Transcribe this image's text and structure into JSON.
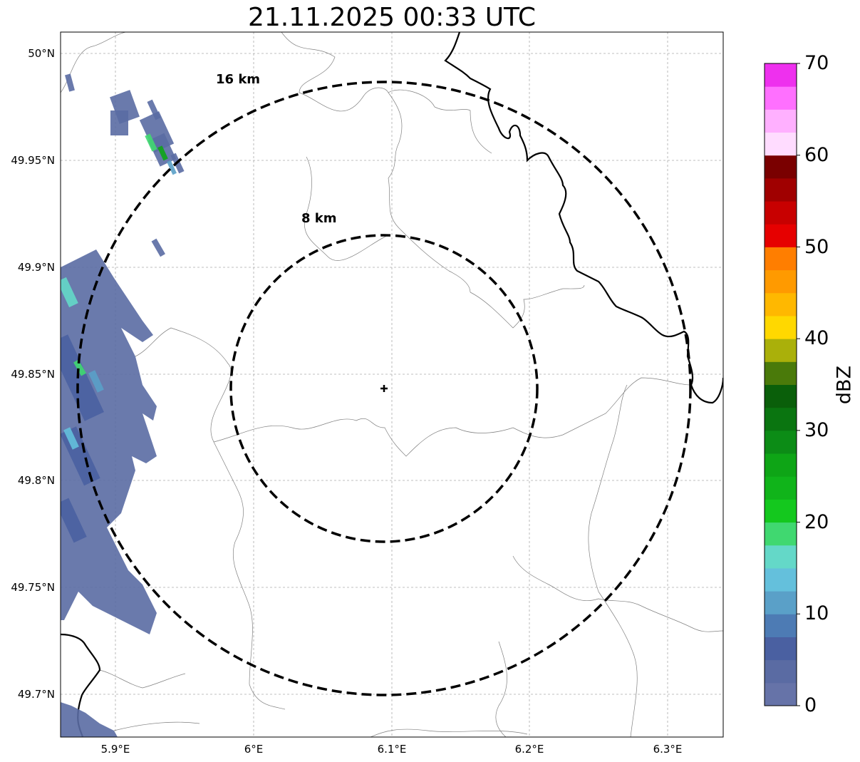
{
  "title": "21.11.2025 00:33 UTC",
  "x_ticks": [
    "5.9°E",
    "6°E",
    "6.1°E",
    "6.2°E",
    "6.3°E"
  ],
  "y_ticks": [
    "50°N",
    "49.95°N",
    "49.9°N",
    "49.85°N",
    "49.8°N",
    "49.75°N",
    "49.7°N"
  ],
  "rings": [
    {
      "label": "16 km",
      "radius_km": 16
    },
    {
      "label": "8 km",
      "radius_km": 8
    }
  ],
  "radar_marker": "cross-icon",
  "colorbar": {
    "label": "dBZ",
    "ticks": [
      "0",
      "10",
      "20",
      "30",
      "40",
      "50",
      "60",
      "70"
    ],
    "min": 0,
    "max": 70,
    "step": 2.5,
    "colors": [
      "#6673a8",
      "#5a6ba3",
      "#4a60a1",
      "#4d7bb4",
      "#5aa0c8",
      "#64c0dc",
      "#64d8c8",
      "#40d870",
      "#14c81e",
      "#10b41a",
      "#0ea516",
      "#0c8c16",
      "#0a7510",
      "#0a5f0a",
      "#4a7a0a",
      "#aab00a",
      "#ffd800",
      "#ffb800",
      "#ff9a00",
      "#ff7e00",
      "#e60000",
      "#c80000",
      "#a00000",
      "#7a0000",
      "#ffdcff",
      "#ffb0ff",
      "#ff70ff",
      "#ee30ee"
    ]
  },
  "colors": {
    "ring": "#000000",
    "border": "#000000",
    "admin_lines": "#808080",
    "grid": "#aaaaaa",
    "echo": "#5a6ba3"
  }
}
